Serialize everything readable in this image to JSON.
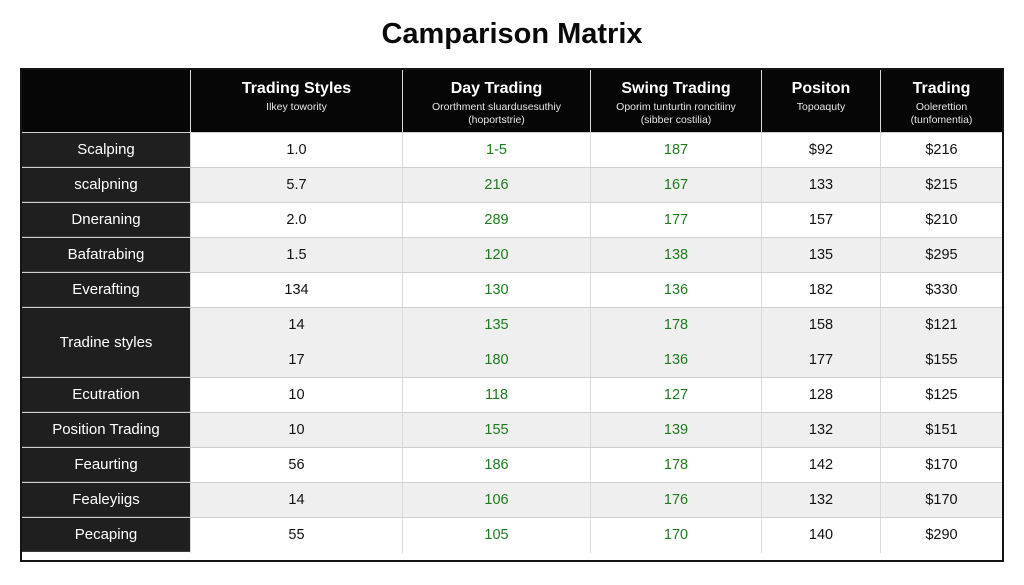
{
  "title": "Camparison Matrix",
  "chart_data": {
    "type": "table",
    "columns": [
      {
        "title": "",
        "subtitle": ""
      },
      {
        "title": "Trading Styles",
        "subtitle": "Ilkey towority"
      },
      {
        "title": "Day Trading",
        "subtitle": "Ororthment sluardusesuthiy\n(hoportstrie)"
      },
      {
        "title": "Swing Trading",
        "subtitle": "Oporim tunturtin roncitiiny\n(sibber costilia)"
      },
      {
        "title": "Positon",
        "subtitle": "Topoaquty"
      },
      {
        "title": "Trading",
        "subtitle": "Oolerettion\n(tunfomentia)"
      }
    ],
    "rows": [
      {
        "label": "Scalping",
        "lines": [
          [
            "1.0",
            "1-5",
            "187",
            "$92",
            "$216"
          ]
        ]
      },
      {
        "label": "scalpning",
        "lines": [
          [
            "5.7",
            "216",
            "167",
            "133",
            "$215"
          ]
        ]
      },
      {
        "label": "Dneraning",
        "lines": [
          [
            "2.0",
            "289",
            "177",
            "157",
            "$210"
          ]
        ]
      },
      {
        "label": "Bafatrabing",
        "lines": [
          [
            "1.5",
            "120",
            "138",
            "135",
            "$295"
          ]
        ]
      },
      {
        "label": "Everafting",
        "lines": [
          [
            "134",
            "130",
            "136",
            "182",
            "$330"
          ]
        ]
      },
      {
        "label": "Tradine styles",
        "lines": [
          [
            "14",
            "135",
            "178",
            "158",
            "$121"
          ],
          [
            "17",
            "180",
            "136",
            "177",
            "$155"
          ]
        ]
      },
      {
        "label": "Ecutration",
        "lines": [
          [
            "10",
            "118",
            "127",
            "128",
            "$125"
          ]
        ]
      },
      {
        "label": "Position Trading",
        "lines": [
          [
            "10",
            "155",
            "139",
            "132",
            "$151"
          ]
        ]
      },
      {
        "label": "Feaurting",
        "lines": [
          [
            "56",
            "186",
            "178",
            "142",
            "$170"
          ]
        ]
      },
      {
        "label": "Fealeyiigs",
        "lines": [
          [
            "14",
            "106",
            "176",
            "132",
            "$170"
          ]
        ]
      },
      {
        "label": "Pecaping",
        "lines": [
          [
            "55",
            "105",
            "170",
            "140",
            "$290"
          ]
        ]
      }
    ],
    "column_colors": [
      "#111111",
      "#1f7a1f",
      "#1f7a1f",
      "#111111",
      "#111111"
    ]
  }
}
